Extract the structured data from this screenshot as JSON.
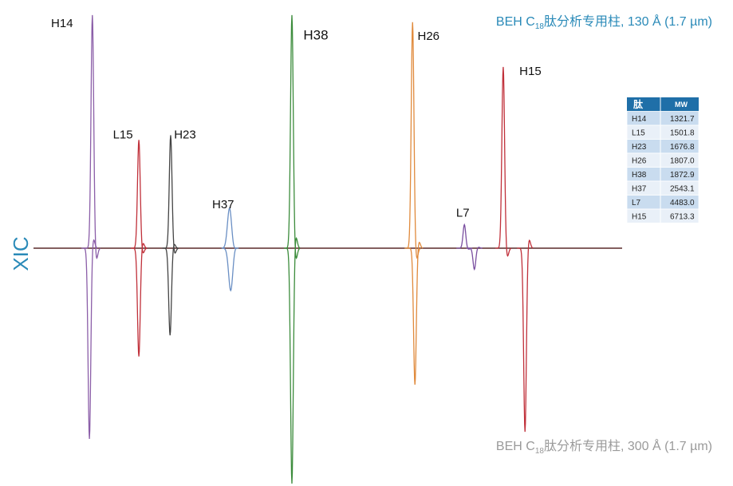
{
  "chart_data": {
    "type": "mirror-chromatogram",
    "ylabel": "XIC",
    "categories": [
      "H14",
      "L15",
      "H23",
      "H37",
      "H38",
      "H26",
      "L7",
      "H15"
    ],
    "colors": [
      "#8b5ea8",
      "#c0303a",
      "#444444",
      "#6a8fc4",
      "#3c8c3c",
      "#e08a3c",
      "#7a4fa0",
      "#c0303a"
    ],
    "xlim": [
      0,
      100
    ],
    "ylim": [
      0,
      100
    ],
    "series": [
      {
        "name": "BEH C18肽分析专用柱, 130 Å (1.7 µm)",
        "color": "#2a8ab8",
        "direction": "up",
        "x": [
          10.0,
          17.9,
          23.3,
          33.3,
          43.9,
          64.4,
          73.2,
          79.8
        ],
        "values": [
          99,
          46,
          48,
          17,
          99,
          96,
          10,
          77
        ]
      },
      {
        "name": "BEH C18肽分析专用柱, 300 Å (1.7 µm)",
        "color": "#9a9a9a",
        "direction": "down",
        "x": [
          9.5,
          17.9,
          23.2,
          33.5,
          43.9,
          64.8,
          74.9,
          83.5
        ],
        "values": [
          81,
          46,
          37,
          18,
          100,
          58,
          9,
          78
        ]
      }
    ]
  },
  "table": {
    "header": [
      "肽",
      "MW"
    ],
    "rows": [
      [
        "H14",
        "1321.7"
      ],
      [
        "L15",
        "1501.8"
      ],
      [
        "H23",
        "1676.8"
      ],
      [
        "H26",
        "1807.0"
      ],
      [
        "H38",
        "1872.9"
      ],
      [
        "H37",
        "2543.1"
      ],
      [
        "L7",
        "4483.0"
      ],
      [
        "H15",
        "6713.3"
      ]
    ]
  }
}
